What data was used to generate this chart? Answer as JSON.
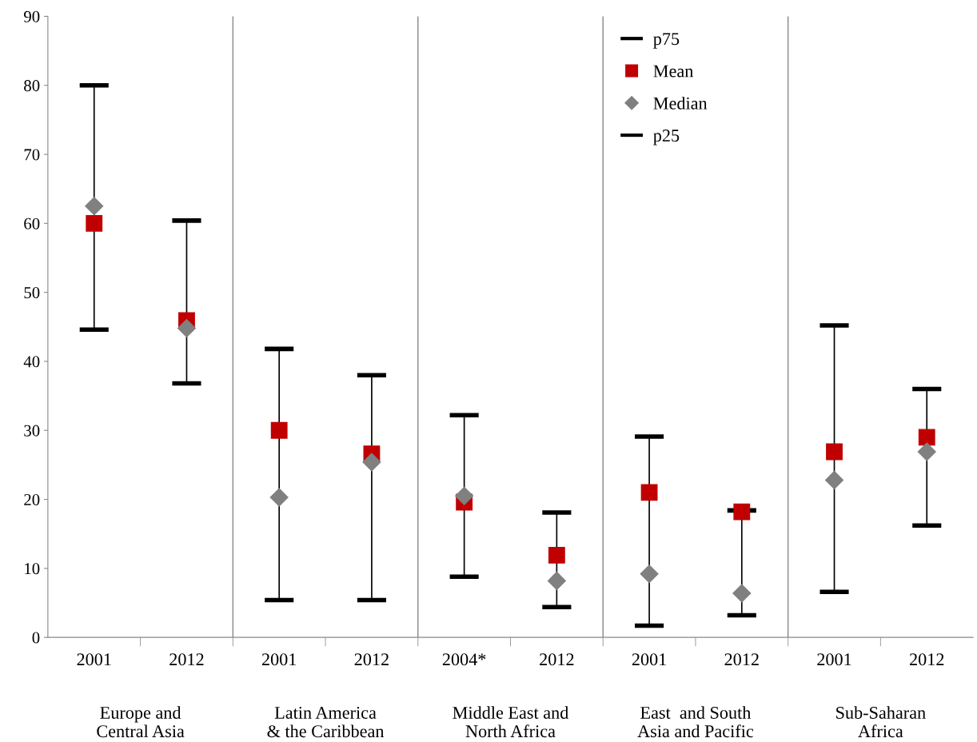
{
  "chart_data": {
    "type": "scatter",
    "categories": [
      "2001",
      "2012",
      "2001",
      "2012",
      "2004*",
      "2012",
      "2001",
      "2012",
      "2001",
      "2012"
    ],
    "series": [
      {
        "name": "p75",
        "color": "#000000",
        "values": [
          null,
          null,
          null,
          null,
          null,
          null,
          null,
          null,
          null,
          null
        ]
      },
      {
        "name": "Mean",
        "color": "#c00000",
        "marker": "square",
        "values": [
          60.0,
          45.9,
          30.0,
          26.6,
          19.6,
          11.9,
          21.0,
          18.2,
          26.9,
          29.0
        ],
        "errors": [
          [
            44.6,
            80.0
          ],
          [
            36.8,
            60.4
          ],
          [
            5.4,
            41.8
          ],
          [
            5.4,
            38.0
          ],
          [
            8.8,
            32.2
          ],
          [
            4.4,
            18.1
          ],
          [
            1.7,
            29.1
          ],
          [
            3.2,
            18.4
          ],
          [
            6.6,
            45.2
          ],
          [
            16.2,
            36.0
          ]
        ]
      },
      {
        "name": "Median",
        "color": "#808080",
        "marker": "diamond",
        "values": [
          62.5,
          44.8,
          20.3,
          25.4,
          20.5,
          8.2,
          9.2,
          6.4,
          22.8,
          26.9
        ]
      },
      {
        "name": "p25",
        "color": "#000000",
        "values": [
          null,
          null,
          null,
          null,
          null,
          null,
          null,
          null,
          null,
          null
        ]
      }
    ],
    "annotations": [
      "Europe and\nCentral Asia",
      "Latin America\n& the Caribbean",
      "Middle East and\nNorth Africa",
      "East  and South\nAsia and Pacific",
      "Sub-Saharan\nAfrica"
    ],
    "ylim": [
      0,
      90
    ],
    "yticks": [
      0,
      10,
      20,
      30,
      40,
      50,
      60,
      70,
      80,
      90
    ],
    "grid": false,
    "legend": "top right"
  }
}
